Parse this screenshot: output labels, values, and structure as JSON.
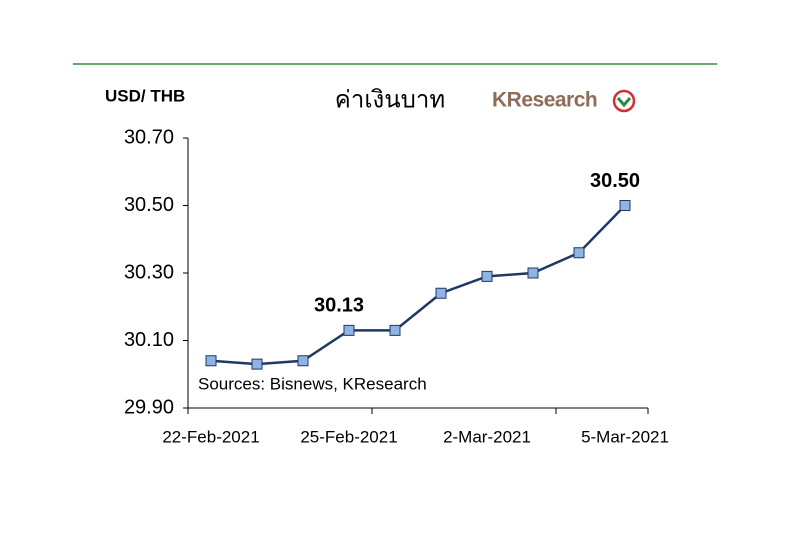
{
  "chart_data": {
    "type": "line",
    "title": "ค่าเงินบาท",
    "y_label": "USD/ THB",
    "brand": "KResearch",
    "source": "Sources: Bisnews, KResearch",
    "categories": [
      "22-Feb-2021",
      null,
      null,
      "25-Feb-2021",
      null,
      null,
      "2-Mar-2021",
      null,
      null,
      "5-Mar-2021"
    ],
    "series": [
      {
        "name": "USD/THB",
        "color": "#1f3864",
        "marker_color": "#8db4e2",
        "values": [
          30.04,
          30.03,
          30.04,
          30.13,
          30.13,
          30.24,
          30.29,
          30.3,
          30.36,
          30.5
        ],
        "value_labels": [
          null,
          null,
          null,
          "30.13",
          null,
          null,
          null,
          null,
          null,
          "30.50"
        ]
      }
    ],
    "ylim": [
      29.9,
      30.7
    ],
    "yticks": [
      {
        "value": 29.9,
        "label": "29.90"
      },
      {
        "value": 30.1,
        "label": "30.10"
      },
      {
        "value": 30.3,
        "label": "30.30"
      },
      {
        "value": 30.5,
        "label": "30.50"
      },
      {
        "value": 30.7,
        "label": "30.70"
      }
    ],
    "grid": false
  }
}
